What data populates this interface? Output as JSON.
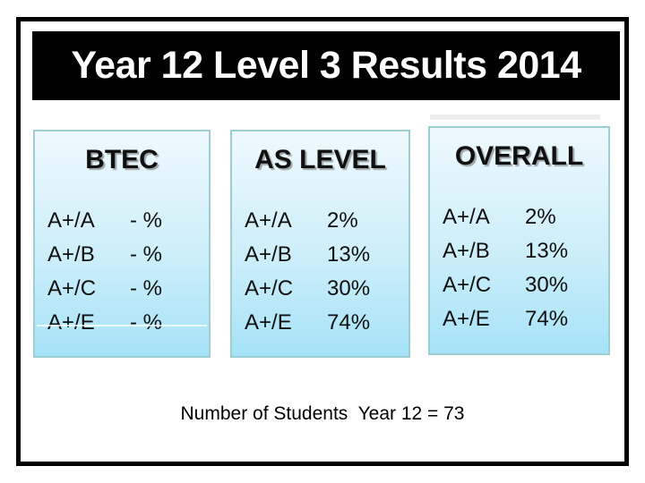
{
  "title": "Year 12 Level 3 Results 2014",
  "caption": "Number of Students  Year 12 = 73",
  "panels": [
    {
      "header": "BTEC",
      "rows": [
        {
          "grade": "A+/A",
          "value": "- %"
        },
        {
          "grade": "A+/B",
          "value": "- %"
        },
        {
          "grade": "A+/C",
          "value": "- %"
        },
        {
          "grade": "A+/E",
          "value": "- %"
        }
      ]
    },
    {
      "header": "AS LEVEL",
      "rows": [
        {
          "grade": "A+/A",
          "value": "2%"
        },
        {
          "grade": "A+/B",
          "value": "13%"
        },
        {
          "grade": "A+/C",
          "value": "30%"
        },
        {
          "grade": "A+/E",
          "value": "74%"
        }
      ]
    },
    {
      "header": "OVERALL",
      "rows": [
        {
          "grade": "A+/A",
          "value": "2%"
        },
        {
          "grade": "A+/B",
          "value": "13%"
        },
        {
          "grade": "A+/C",
          "value": "30%"
        },
        {
          "grade": "A+/E",
          "value": "74%"
        }
      ]
    }
  ],
  "colors": {
    "title_bg": "#000000",
    "title_text": "#ffffff",
    "frame_border": "#000000",
    "panel_border": "#9bcfd4",
    "panel_fill_top": "#eef9fd",
    "panel_fill_bottom": "#a6e3f8",
    "text_color": "#101010"
  }
}
